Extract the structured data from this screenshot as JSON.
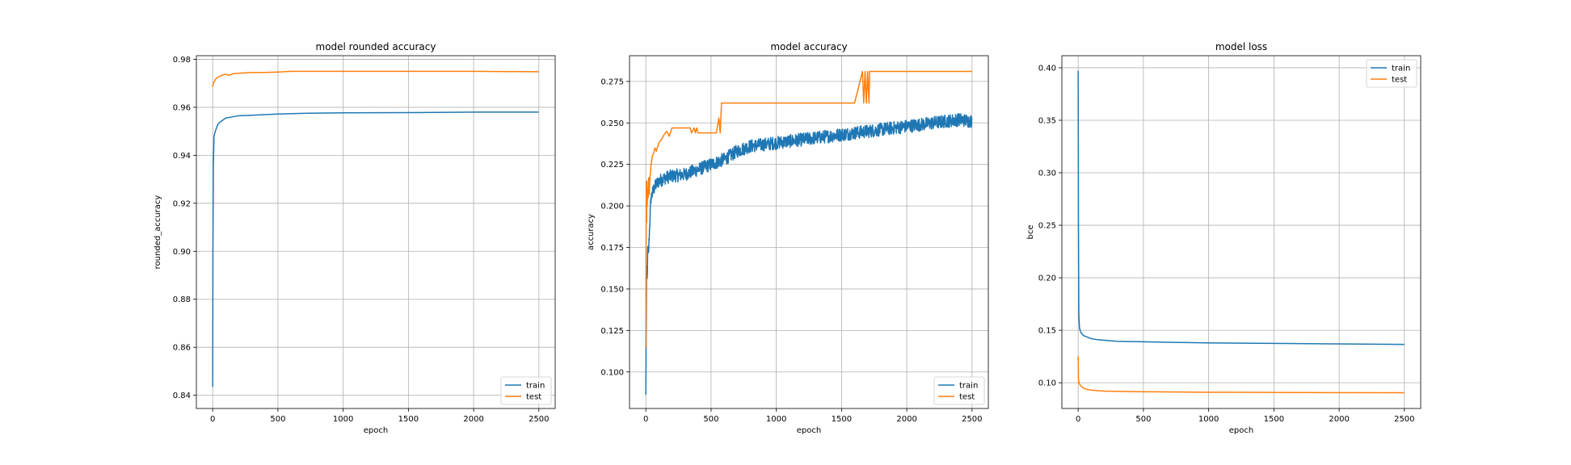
{
  "chart_data": [
    {
      "type": "line",
      "title": "model rounded accuracy",
      "xlabel": "epoch",
      "ylabel": "rounded_accuracy",
      "xlim": [
        -125,
        2625
      ],
      "ylim": [
        0.8345,
        0.9815
      ],
      "xticks": [
        0,
        500,
        1000,
        1500,
        2000,
        2500
      ],
      "xtick_labels": [
        "0",
        "500",
        "1000",
        "1500",
        "2000",
        "2500"
      ],
      "yticks": [
        0.84,
        0.86,
        0.88,
        0.9,
        0.92,
        0.94,
        0.96,
        0.98
      ],
      "ytick_labels": [
        "0.84",
        "0.86",
        "0.88",
        "0.90",
        "0.92",
        "0.94",
        "0.96",
        "0.98"
      ],
      "grid": true,
      "legend": "lower-right",
      "series": [
        {
          "name": "train",
          "color": "#1f77b4",
          "x": [
            0,
            2,
            5,
            10,
            20,
            40,
            60,
            100,
            150,
            200,
            300,
            500,
            700,
            1000,
            1500,
            2000,
            2499
          ],
          "y": [
            0.8435,
            0.9,
            0.935,
            0.948,
            0.95,
            0.953,
            0.954,
            0.9555,
            0.956,
            0.9565,
            0.9567,
            0.9572,
            0.9575,
            0.9577,
            0.9578,
            0.958,
            0.958
          ]
        },
        {
          "name": "test",
          "color": "#ff7f0e",
          "x": [
            0,
            5,
            10,
            20,
            30,
            50,
            80,
            100,
            120,
            160,
            200,
            300,
            400,
            500,
            600,
            800,
            1000,
            1500,
            2000,
            2499
          ],
          "y": [
            0.9685,
            0.97,
            0.9705,
            0.9715,
            0.9722,
            0.9728,
            0.9735,
            0.9738,
            0.9733,
            0.974,
            0.9742,
            0.9745,
            0.9745,
            0.9747,
            0.975,
            0.975,
            0.975,
            0.975,
            0.975,
            0.9748
          ]
        }
      ]
    },
    {
      "type": "line",
      "title": "model accuracy",
      "xlabel": "epoch",
      "ylabel": "accuracy",
      "xlim": [
        -125,
        2625
      ],
      "ylim": [
        0.078,
        0.2905
      ],
      "xticks": [
        0,
        500,
        1000,
        1500,
        2000,
        2500
      ],
      "xtick_labels": [
        "0",
        "500",
        "1000",
        "1500",
        "2000",
        "2500"
      ],
      "yticks": [
        0.1,
        0.125,
        0.15,
        0.175,
        0.2,
        0.225,
        0.25,
        0.275
      ],
      "ytick_labels": [
        "0.100",
        "0.125",
        "0.150",
        "0.175",
        "0.200",
        "0.225",
        "0.250",
        "0.275"
      ],
      "grid": true,
      "legend": "lower-right",
      "series": [
        {
          "name": "train",
          "color": "#1f77b4",
          "x": [
            0,
            3,
            6,
            10,
            15,
            20,
            30,
            40,
            60,
            80,
            100,
            150,
            200,
            300,
            400,
            500,
            600,
            700,
            800,
            1000,
            1200,
            1400,
            1600,
            1800,
            2000,
            2200,
            2400,
            2499
          ],
          "y": [
            0.085,
            0.13,
            0.16,
            0.155,
            0.175,
            0.17,
            0.19,
            0.205,
            0.21,
            0.213,
            0.215,
            0.217,
            0.218,
            0.219,
            0.222,
            0.225,
            0.228,
            0.233,
            0.236,
            0.238,
            0.24,
            0.242,
            0.244,
            0.246,
            0.248,
            0.25,
            0.252,
            0.251
          ],
          "noise": 0.004
        },
        {
          "name": "test",
          "color": "#ff7f0e",
          "x": [
            0,
            2,
            4,
            6,
            8,
            10,
            14,
            18,
            22,
            26,
            30,
            40,
            50,
            60,
            70,
            80,
            100,
            120,
            140,
            160,
            180,
            200,
            230,
            260,
            300,
            340,
            350,
            370,
            380,
            390,
            400,
            430,
            500,
            540,
            560,
            570,
            580,
            600,
            700,
            800,
            1000,
            1200,
            1400,
            1600,
            1660,
            1670,
            1680,
            1690,
            1700,
            1710,
            1715,
            1720,
            1730,
            1800,
            2000,
            2200,
            2499
          ],
          "y": [
            0.115,
            0.17,
            0.215,
            0.19,
            0.215,
            0.2,
            0.21,
            0.205,
            0.217,
            0.207,
            0.215,
            0.225,
            0.23,
            0.232,
            0.235,
            0.233,
            0.238,
            0.24,
            0.243,
            0.245,
            0.242,
            0.247,
            0.247,
            0.247,
            0.247,
            0.247,
            0.244,
            0.247,
            0.244,
            0.247,
            0.244,
            0.244,
            0.244,
            0.244,
            0.253,
            0.244,
            0.262,
            0.262,
            0.262,
            0.262,
            0.262,
            0.262,
            0.262,
            0.262,
            0.281,
            0.262,
            0.281,
            0.262,
            0.281,
            0.262,
            0.281,
            0.281,
            0.281,
            0.281,
            0.281,
            0.281,
            0.281
          ]
        }
      ]
    },
    {
      "type": "line",
      "title": "model loss",
      "xlabel": "epoch",
      "ylabel": "bce",
      "xlim": [
        -125,
        2625
      ],
      "ylim": [
        0.0755,
        0.4115
      ],
      "xticks": [
        0,
        500,
        1000,
        1500,
        2000,
        2500
      ],
      "xtick_labels": [
        "0",
        "500",
        "1000",
        "1500",
        "2000",
        "2500"
      ],
      "yticks": [
        0.1,
        0.15,
        0.2,
        0.25,
        0.3,
        0.35,
        0.4
      ],
      "ytick_labels": [
        "0.10",
        "0.15",
        "0.20",
        "0.25",
        "0.30",
        "0.35",
        "0.40"
      ],
      "grid": true,
      "legend": "upper-right",
      "series": [
        {
          "name": "train",
          "color": "#1f77b4",
          "x": [
            0,
            2,
            5,
            10,
            20,
            40,
            60,
            100,
            150,
            200,
            300,
            500,
            700,
            1000,
            1500,
            2000,
            2499
          ],
          "y": [
            0.397,
            0.25,
            0.165,
            0.152,
            0.148,
            0.145,
            0.144,
            0.142,
            0.141,
            0.1405,
            0.1395,
            0.139,
            0.1385,
            0.138,
            0.1375,
            0.137,
            0.1365
          ]
        },
        {
          "name": "test",
          "color": "#ff7f0e",
          "x": [
            0,
            2,
            5,
            10,
            20,
            40,
            60,
            100,
            150,
            200,
            300,
            500,
            700,
            1000,
            1500,
            2000,
            2499
          ],
          "y": [
            0.125,
            0.105,
            0.1,
            0.099,
            0.097,
            0.095,
            0.094,
            0.093,
            0.0925,
            0.092,
            0.0918,
            0.0915,
            0.0913,
            0.091,
            0.0908,
            0.0906,
            0.0905
          ]
        }
      ]
    }
  ]
}
